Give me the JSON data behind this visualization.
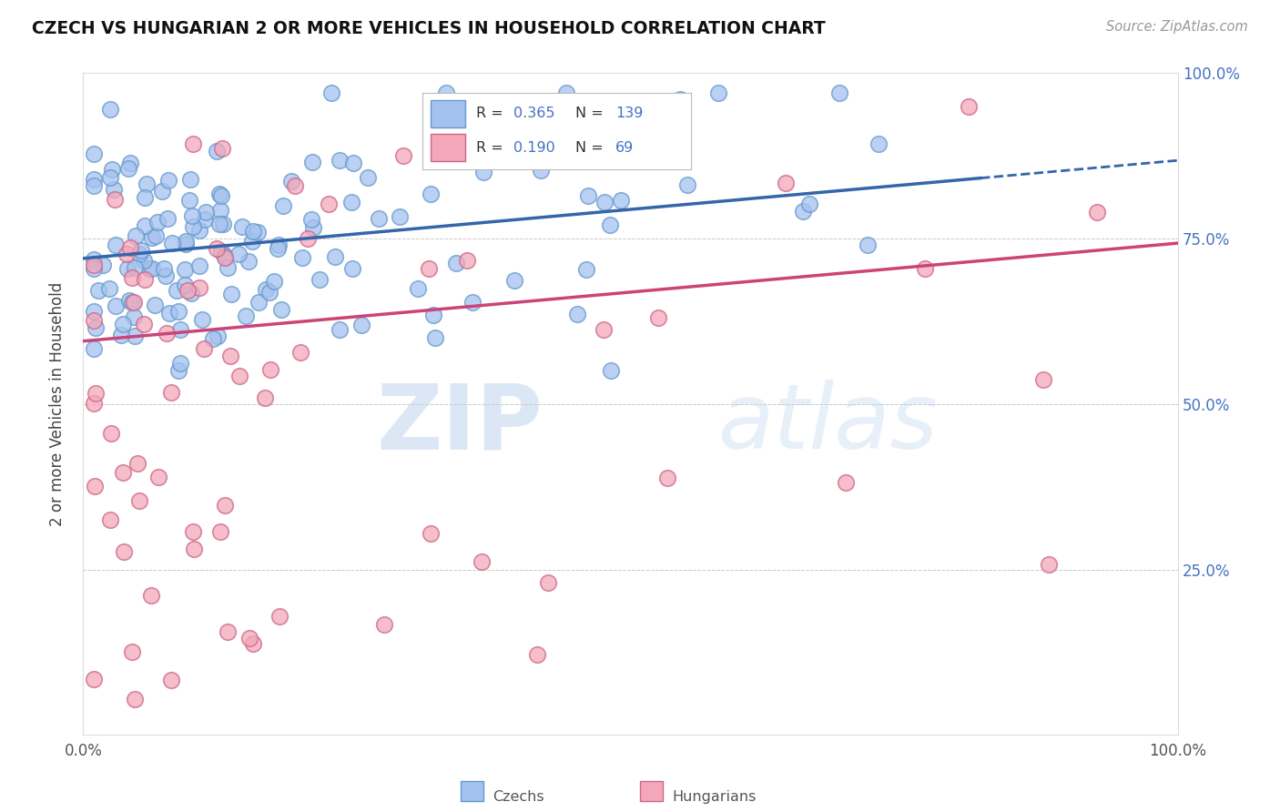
{
  "title": "CZECH VS HUNGARIAN 2 OR MORE VEHICLES IN HOUSEHOLD CORRELATION CHART",
  "source": "Source: ZipAtlas.com",
  "ylabel": "2 or more Vehicles in Household",
  "xlim": [
    0.0,
    1.0
  ],
  "ylim": [
    0.0,
    1.0
  ],
  "blue_R": 0.365,
  "blue_N": 139,
  "pink_R": 0.19,
  "pink_N": 69,
  "blue_color": "#a4c2f0",
  "blue_edge_color": "#6699cc",
  "pink_color": "#f4a7b9",
  "pink_edge_color": "#cc6688",
  "blue_line_color": "#3366aa",
  "pink_line_color": "#cc4477",
  "watermark_zip": "ZIP",
  "watermark_atlas": "atlas",
  "legend_blue_label": "Czechs",
  "legend_pink_label": "Hungarians",
  "right_tick_color": "#4472c4",
  "grid_color": "#cccccc"
}
